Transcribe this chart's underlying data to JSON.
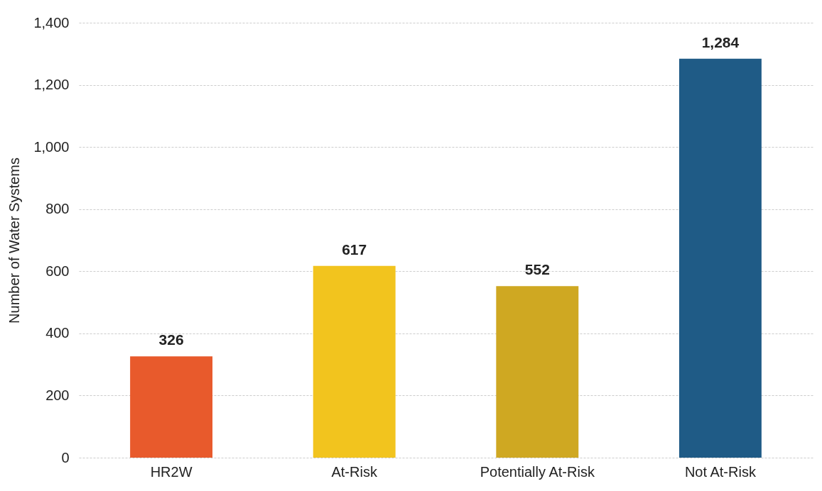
{
  "chart_data": {
    "type": "bar",
    "ylabel": "Number of Water Systems",
    "categories": [
      "HR2W",
      "At-Risk",
      "Potentially At-Risk",
      "Not At-Risk"
    ],
    "values": [
      326,
      617,
      552,
      1284
    ],
    "colors": [
      "#e85a2c",
      "#f2c41e",
      "#cfa822",
      "#1f5b86"
    ],
    "value_labels": [
      "326",
      "617",
      "552",
      "1,284"
    ],
    "ylim": [
      0,
      1400
    ],
    "yticks": [
      0,
      200,
      400,
      600,
      800,
      {
        "value": 1000,
        "label": "1,000"
      },
      {
        "value": 1200,
        "label": "1,200"
      },
      {
        "value": 1400,
        "label": "1,400"
      }
    ],
    "grid": "y"
  }
}
